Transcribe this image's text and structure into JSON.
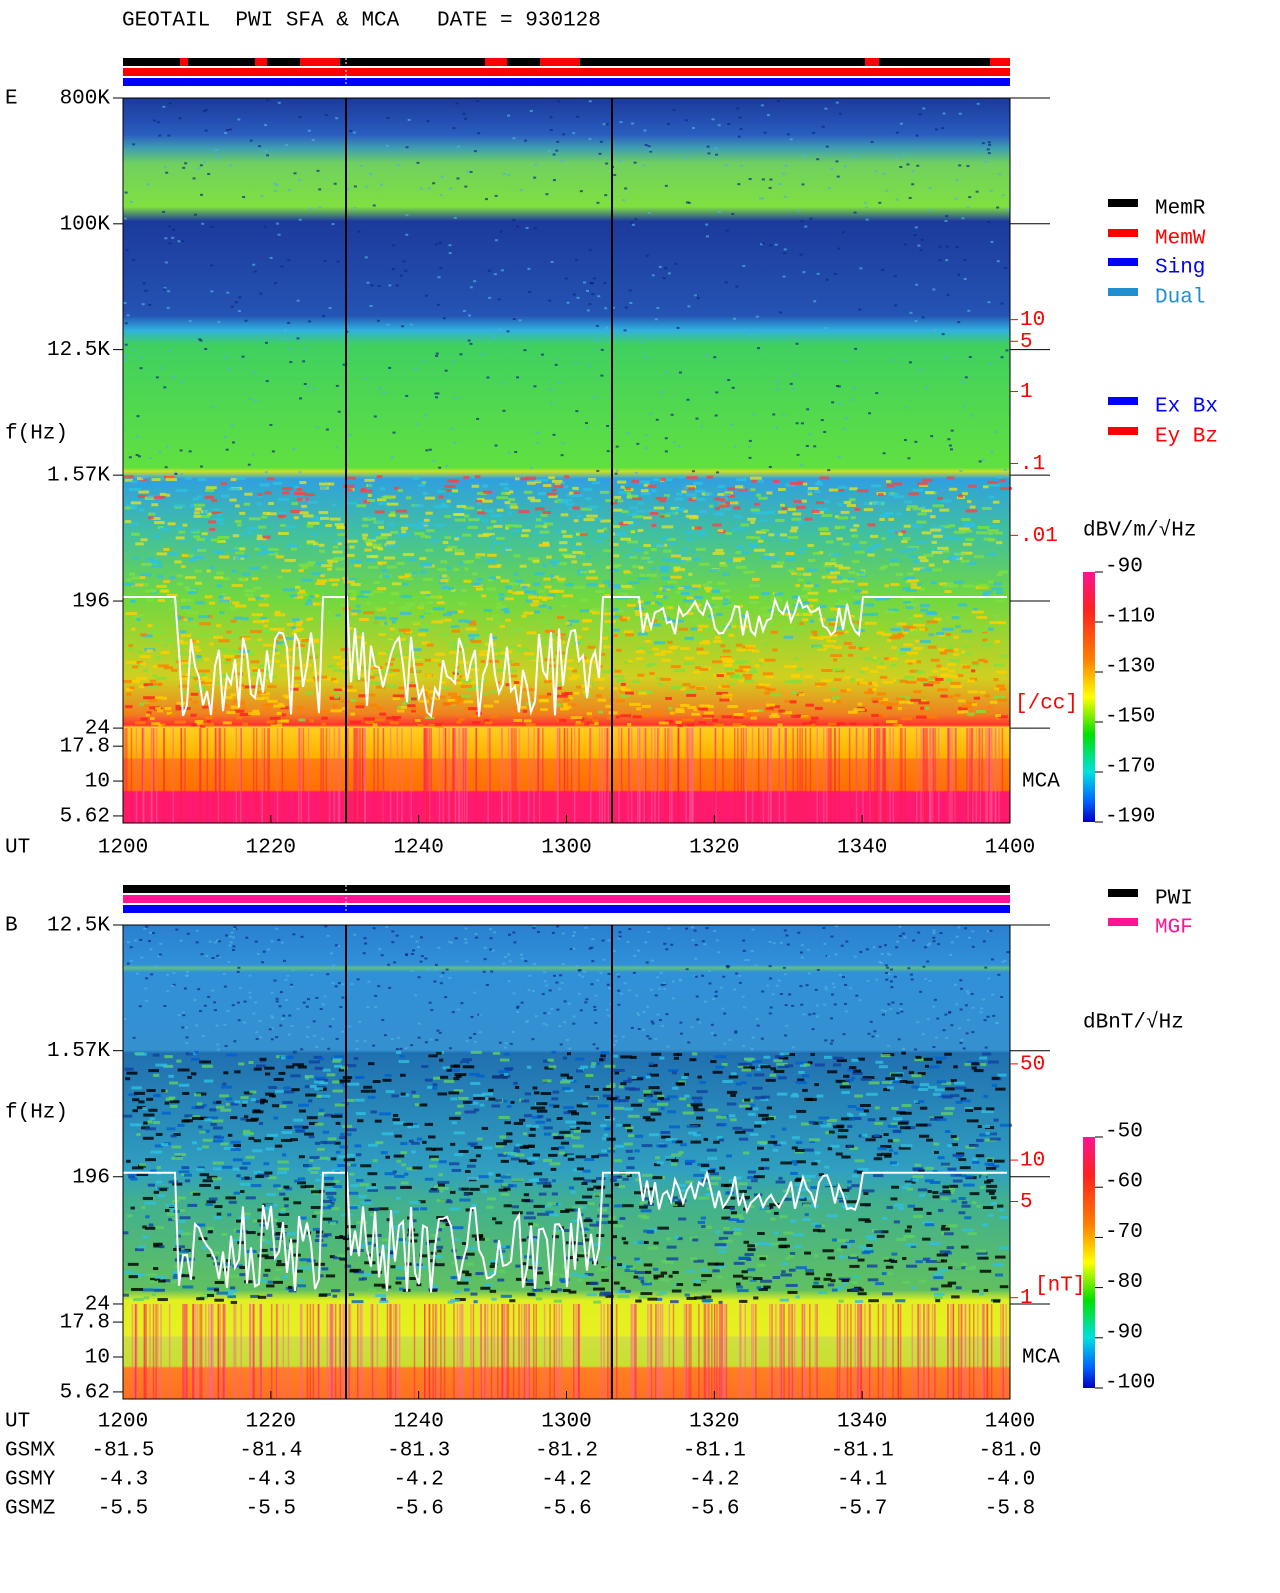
{
  "title": "GEOTAIL  PWI SFA & MCA   DATE = 930128",
  "chart_data": [
    {
      "type": "spectrogram",
      "panel_label": "E",
      "y_label": "f(Hz)",
      "x_label": "UT",
      "band_label": "MCA",
      "categories": [
        "1200",
        "1220",
        "1240",
        "1300",
        "1320",
        "1340",
        "1400"
      ],
      "yscale": "log",
      "ylim": [
        5,
        800000
      ],
      "yticks": [
        {
          "value": 800000,
          "label": "800K"
        },
        {
          "value": 100000,
          "label": "100K"
        },
        {
          "value": 12500,
          "label": "12.5K"
        },
        {
          "value": 1570,
          "label": "1.57K"
        },
        196,
        24,
        17.8,
        10,
        5.62
      ],
      "y2lim": [
        0.005,
        20
      ],
      "y2ticks": [
        10,
        5,
        1,
        {
          "value": 0.1,
          "label": ".1"
        },
        {
          "value": 0.01,
          "label": ".01"
        }
      ],
      "y2_label": "[/cc]",
      "y2_color": "#ff0000",
      "colorbar": {
        "label": "dBV/m/√Hz",
        "lim": [
          -190,
          -90
        ],
        "ticks": [
          -90,
          -110,
          -130,
          -150,
          -170,
          -190
        ]
      },
      "legend": [
        {
          "name": "MemR",
          "color": "#000000"
        },
        {
          "name": "MemW",
          "color": "#ff0000"
        },
        {
          "name": "Sing",
          "color": "#0000ff"
        },
        {
          "name": "Dual",
          "color": "#1f8fd0"
        }
      ],
      "legend2": [
        {
          "name": "Ex Bx",
          "color": "#0000ff"
        },
        {
          "name": "Ey Bz",
          "color": "#ff0000"
        }
      ]
    },
    {
      "type": "spectrogram",
      "panel_label": "B",
      "y_label": "f(Hz)",
      "x_label": "UT",
      "band_label": "MCA",
      "categories": [
        "1200",
        "1220",
        "1240",
        "1300",
        "1320",
        "1340",
        "1400"
      ],
      "yscale": "log",
      "ylim": [
        5,
        12500
      ],
      "yticks": [
        {
          "value": 12500,
          "label": "12.5K"
        },
        {
          "value": 1570,
          "label": "1.57K"
        },
        196,
        24,
        17.8,
        10,
        5.62
      ],
      "y2lim": [
        0.8,
        60
      ],
      "y2ticks": [
        50,
        10,
        5,
        1
      ],
      "y2_label": "[nT]",
      "y2_color": "#ff0000",
      "colorbar": {
        "label": "dBnT/√Hz",
        "lim": [
          -100,
          -50
        ],
        "ticks": [
          -50,
          -60,
          -70,
          -80,
          -90,
          -100
        ]
      },
      "legend": [
        {
          "name": "PWI",
          "color": "#000000"
        },
        {
          "name": "MGF",
          "color": "#ff1493"
        }
      ]
    }
  ],
  "orbit": {
    "rows": [
      {
        "label": "GSMX",
        "values": [
          "-81.5",
          "-81.4",
          "-81.3",
          "-81.2",
          "-81.1",
          "-81.1",
          "-81.0"
        ]
      },
      {
        "label": "GSMY",
        "values": [
          "-4.3",
          "-4.3",
          "-4.2",
          "-4.2",
          "-4.2",
          "-4.1",
          "-4.0"
        ]
      },
      {
        "label": "GSMZ",
        "values": [
          "-5.5",
          "-5.5",
          "-5.6",
          "-5.6",
          "-5.6",
          "-5.7",
          "-5.8"
        ]
      }
    ]
  }
}
